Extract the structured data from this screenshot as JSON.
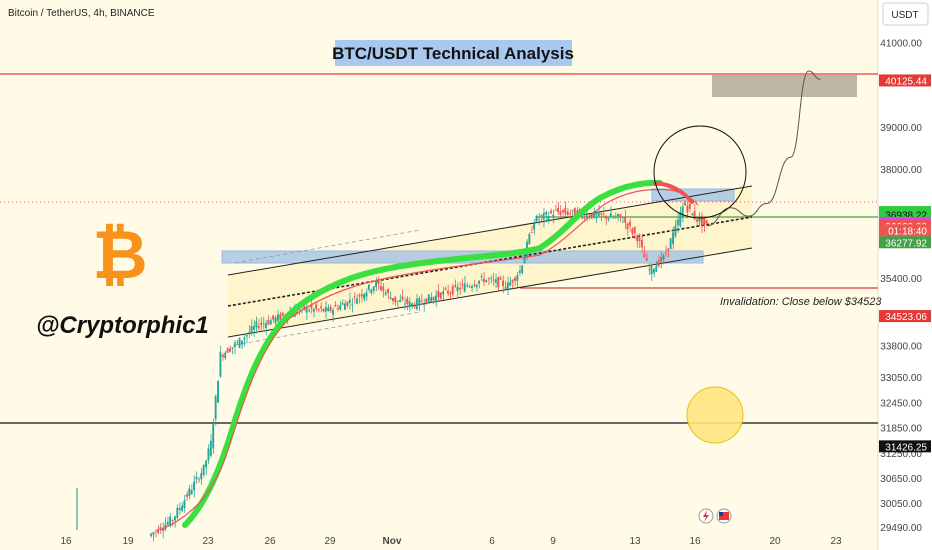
{
  "header": {
    "symbol": "Bitcoin / TetherUS, 4h, BINANCE",
    "currency": "USDT"
  },
  "title": "BTC/USDT Technical Analysis",
  "author": "@Cryptorphic1",
  "bitcoin_logo_glyph": "₿",
  "invalidation_note": "Invalidation: Close below $34523",
  "colors": {
    "background": "#fffbe6",
    "up_candle": "#26a69a",
    "down_candle": "#ef5350",
    "resistance_line": "#e53935",
    "support_green": "#43a047",
    "ema_green": "#39e03f",
    "bitcoin_orange": "#f7931a",
    "zone_blue": "#9fbfe8"
  },
  "chart_data": {
    "type": "candlestick",
    "title": "BTC/USDT Technical Analysis",
    "timeframe": "4h",
    "exchange": "BINANCE",
    "ylim": [
      29200,
      41800
    ],
    "x_ticks": [
      "16",
      "19",
      "23",
      "26",
      "29",
      "Nov",
      "6",
      "9",
      "13",
      "16",
      "20",
      "23"
    ],
    "y_ticks": [
      41000.0,
      39000.0,
      38000.0,
      35400.0,
      33800.0,
      33050.0,
      32450.0,
      31850.0,
      31250.0,
      30650.0,
      30050.0,
      29490.0
    ],
    "price_labels": [
      {
        "text": "40125.44",
        "value": 40125.44,
        "color": "#e53935"
      },
      {
        "text": "36996.69",
        "value": 36996.69,
        "color": "#2ecc40"
      },
      {
        "text": "36938.22",
        "value": 36938.22,
        "color": "#2ecc40"
      },
      {
        "text": "36738.55",
        "value": 36738.55,
        "color": "#e040fb"
      },
      {
        "text": "36668.00",
        "value": 36668.0,
        "color": "#ef5350"
      },
      {
        "text": "01:18:40",
        "value": 36560,
        "color": "#ef5350"
      },
      {
        "text": "36277.92",
        "value": 36277.92,
        "color": "#43a047"
      },
      {
        "text": "34523.06",
        "value": 34523.06,
        "color": "#e53935"
      },
      {
        "text": "31426.25",
        "value": 31426.25,
        "color": "#111111"
      }
    ],
    "levels": {
      "resistance": 40125.44,
      "current": 36668.0,
      "support": 36277.92,
      "invalidation": 34523.06,
      "major_support": 31426.25
    },
    "target_zone": {
      "from": 39750,
      "to": 40150
    },
    "price_path": [
      [
        0,
        29300
      ],
      [
        20,
        29700
      ],
      [
        35,
        30400
      ],
      [
        46,
        30900
      ],
      [
        52,
        31500
      ],
      [
        60,
        33600
      ],
      [
        75,
        33900
      ],
      [
        90,
        34300
      ],
      [
        110,
        34500
      ],
      [
        130,
        34700
      ],
      [
        150,
        34650
      ],
      [
        170,
        34900
      ],
      [
        190,
        35300
      ],
      [
        205,
        34900
      ],
      [
        220,
        34800
      ],
      [
        240,
        35000
      ],
      [
        260,
        35200
      ],
      [
        280,
        35400
      ],
      [
        300,
        35250
      ],
      [
        310,
        35600
      ],
      [
        322,
        36800
      ],
      [
        340,
        37000
      ],
      [
        360,
        36950
      ],
      [
        380,
        36900
      ],
      [
        395,
        36850
      ],
      [
        408,
        36400
      ],
      [
        418,
        35600
      ],
      [
        430,
        35900
      ],
      [
        440,
        36600
      ],
      [
        447,
        37200
      ],
      [
        455,
        36900
      ],
      [
        465,
        36668
      ]
    ],
    "projection_path": [
      [
        465,
        36668
      ],
      [
        485,
        37100
      ],
      [
        500,
        36900
      ],
      [
        515,
        37200
      ],
      [
        535,
        38300
      ],
      [
        550,
        40350
      ],
      [
        560,
        40150
      ]
    ]
  }
}
